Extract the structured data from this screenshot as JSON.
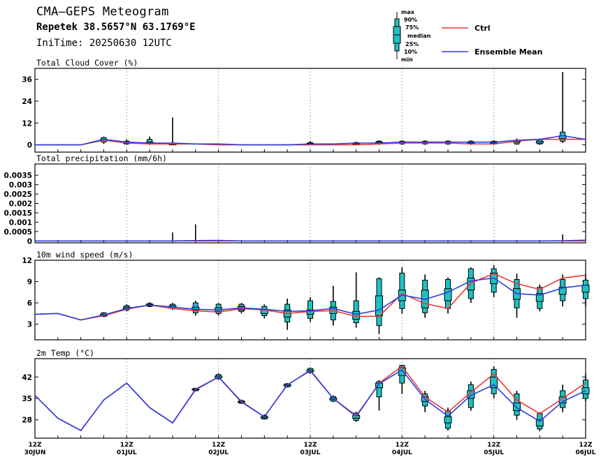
{
  "header": {
    "title": "CMA—GEPS Meteogram",
    "location": "Repetek 38.5657°N 63.1769°E",
    "init": "IniTime: 20250630 12UTC"
  },
  "legend": {
    "box_labels": [
      "max",
      "90%",
      "75%",
      "median",
      "25%",
      "10%",
      "min"
    ],
    "ctrl_label": "Ctrl",
    "mean_label": "Ensemble Mean",
    "ctrl_color": "#e8393a",
    "mean_color": "#2b3fe0",
    "box_color": "#20c0c0"
  },
  "chart_data": {
    "type": "line",
    "x_ticks": [
      {
        "hour": 0,
        "top": "12Z",
        "bottom": "30JUN"
      },
      {
        "hour": 24,
        "top": "12Z",
        "bottom": "01JUL"
      },
      {
        "hour": 48,
        "top": "12Z",
        "bottom": "02JUL"
      },
      {
        "hour": 72,
        "top": "12Z",
        "bottom": "03JUL"
      },
      {
        "hour": 96,
        "top": "12Z",
        "bottom": "04JUL"
      },
      {
        "hour": 120,
        "top": "12Z",
        "bottom": "05JUL"
      },
      {
        "hour": 144,
        "top": "12Z",
        "bottom": "06JUL"
      }
    ],
    "xlim": [
      0,
      144
    ],
    "panels": [
      {
        "key": "cloud",
        "title": "Total Cloud Cover (%)",
        "ylim": [
          -4,
          42
        ],
        "yticks": [
          "36",
          "24",
          "12",
          "0"
        ],
        "ytick_values": [
          36,
          24,
          12,
          0
        ],
        "x": [
          0,
          6,
          12,
          18,
          24,
          30,
          36,
          42,
          48,
          54,
          60,
          66,
          72,
          78,
          84,
          90,
          96,
          102,
          108,
          114,
          120,
          126,
          132,
          138,
          144
        ],
        "ctrl": [
          0,
          0,
          0,
          2.5,
          1,
          0.5,
          0.5,
          0.5,
          0,
          0,
          0,
          0,
          0,
          0,
          0,
          0.5,
          1,
          1,
          1,
          0.5,
          0.5,
          2,
          3,
          3,
          3
        ],
        "mean": [
          0,
          0,
          0,
          3,
          1.5,
          1,
          1,
          0.5,
          0.5,
          0,
          0,
          0,
          0.5,
          0.5,
          1,
          1,
          1.5,
          1.5,
          1.5,
          1.5,
          1.5,
          2.5,
          3,
          5,
          3
        ],
        "boxes": [
          [
            18,
            0.5,
            1.5,
            2.5,
            3,
            4,
            4.5
          ],
          [
            24,
            0,
            0.5,
            1,
            1.2,
            2,
            3
          ],
          [
            30,
            0,
            0.5,
            1,
            1.5,
            3,
            4.5
          ],
          [
            36,
            0,
            0,
            0,
            0.5,
            1,
            15
          ],
          [
            72,
            0,
            0,
            0.5,
            0.8,
            1.2,
            2
          ],
          [
            84,
            0,
            0.2,
            0.5,
            0.8,
            1.2,
            1.8
          ],
          [
            90,
            0,
            0.5,
            0.8,
            1.5,
            2,
            2.5
          ],
          [
            96,
            0,
            0.5,
            1,
            1.5,
            2,
            2.5
          ],
          [
            102,
            0,
            0.5,
            1,
            1.5,
            2,
            2.5
          ],
          [
            108,
            0,
            0.5,
            1,
            1.5,
            2,
            2.5
          ],
          [
            114,
            0,
            0.5,
            1,
            1.5,
            2,
            2.5
          ],
          [
            120,
            0,
            0.5,
            1,
            1.5,
            2,
            2.5
          ],
          [
            126,
            0,
            0.5,
            1.5,
            2,
            2.5,
            3.5
          ],
          [
            132,
            0,
            0.5,
            1,
            2,
            3,
            3.5
          ],
          [
            138,
            1,
            2,
            3.5,
            5,
            7,
            40
          ]
        ]
      },
      {
        "key": "precip",
        "title": "Total precipitation (mm/6h)",
        "ylim": [
          -0.0001,
          0.0041
        ],
        "yticks": [
          "0.0035",
          "0.003",
          "0.0025",
          "0.002",
          "0.0015",
          "0.001",
          "0.0005",
          "0"
        ],
        "ytick_values": [
          0.0035,
          0.003,
          0.0025,
          0.002,
          0.0015,
          0.001,
          0.0005,
          0
        ],
        "x": [
          0,
          6,
          12,
          18,
          24,
          30,
          36,
          42,
          48,
          54,
          60,
          66,
          72,
          78,
          84,
          90,
          96,
          102,
          108,
          114,
          120,
          126,
          132,
          138,
          144
        ],
        "ctrl": [
          0,
          0,
          0,
          0,
          0,
          0,
          0,
          0,
          0,
          0,
          0,
          0,
          0,
          0,
          0,
          0,
          0,
          0,
          0,
          0,
          0,
          0,
          0,
          0,
          0
        ],
        "mean": [
          0,
          0,
          0,
          0,
          0,
          0,
          0,
          2e-05,
          3e-05,
          0,
          0,
          0,
          0,
          0,
          0,
          0,
          0,
          0,
          0,
          0,
          0,
          0,
          0,
          1e-05,
          4e-05
        ],
        "spikes": [
          [
            36,
            0.00045
          ],
          [
            42,
            0.00088
          ],
          [
            138,
            0.00035
          ]
        ]
      },
      {
        "key": "wind",
        "title": "10m wind speed (m/s)",
        "ylim": [
          0.8,
          12
        ],
        "yticks": [
          "12",
          "9",
          "6",
          "3"
        ],
        "ytick_values": [
          12,
          9,
          6,
          3
        ],
        "x": [
          0,
          6,
          12,
          18,
          24,
          30,
          36,
          42,
          48,
          54,
          60,
          66,
          72,
          78,
          84,
          90,
          96,
          102,
          108,
          114,
          120,
          126,
          132,
          138,
          144
        ],
        "ctrl": [
          4.4,
          4.5,
          3.6,
          4.2,
          5.1,
          5.7,
          5.2,
          4.9,
          4.7,
          5.2,
          5,
          4.5,
          4.8,
          4.9,
          4.1,
          4.1,
          7.3,
          5.9,
          5.2,
          8.8,
          10.1,
          8.7,
          7.9,
          9.5,
          9.9
        ],
        "mean": [
          4.4,
          4.5,
          3.6,
          4.3,
          5.2,
          5.7,
          5.4,
          5.1,
          5,
          5.3,
          5.1,
          4.8,
          4.9,
          5.2,
          4.4,
          5,
          7.1,
          6.5,
          7.5,
          9.1,
          9.5,
          7.3,
          7.1,
          8.1,
          8.5
        ],
        "boxes": [
          [
            18,
            4,
            4.1,
            4.2,
            4.4,
            4.6,
            4.7
          ],
          [
            24,
            4.8,
            5,
            5.2,
            5.4,
            5.6,
            5.8
          ],
          [
            30,
            5.4,
            5.5,
            5.6,
            5.8,
            5.9,
            6.1
          ],
          [
            36,
            5,
            5.2,
            5.4,
            5.6,
            5.8,
            6
          ],
          [
            42,
            4.2,
            4.6,
            5,
            5.4,
            6,
            6.3
          ],
          [
            48,
            4.2,
            4.5,
            4.8,
            5.3,
            5.8,
            6
          ],
          [
            54,
            4.5,
            4.8,
            5,
            5.5,
            5.8,
            6
          ],
          [
            60,
            3.8,
            4.2,
            4.5,
            5,
            5.5,
            5.8
          ],
          [
            66,
            2.2,
            3.3,
            4,
            5,
            5.8,
            6.6
          ],
          [
            72,
            3.3,
            3.8,
            4.4,
            5,
            6.3,
            6.8
          ],
          [
            78,
            2.8,
            3.6,
            4.5,
            5.4,
            6.2,
            8.4
          ],
          [
            84,
            2.5,
            3.2,
            3.7,
            4.8,
            6.3,
            10.3
          ],
          [
            90,
            1.6,
            2.8,
            4.2,
            7,
            9.4,
            9.6
          ],
          [
            96,
            4.5,
            5.2,
            6.3,
            7.8,
            10.2,
            11
          ],
          [
            102,
            3.9,
            4.6,
            5.3,
            7.8,
            9.2,
            10
          ],
          [
            108,
            4.5,
            5.2,
            6.3,
            8,
            9.3,
            9.6
          ],
          [
            114,
            6,
            6.6,
            7.8,
            9.5,
            10.8,
            11
          ],
          [
            120,
            6.8,
            7.5,
            8.7,
            10.2,
            10.8,
            11.3
          ],
          [
            126,
            3.9,
            5.3,
            6.5,
            8,
            9.3,
            10.1
          ],
          [
            132,
            4.8,
            5.2,
            6.2,
            7.3,
            8.2,
            8.6
          ],
          [
            138,
            5.5,
            6.3,
            7.2,
            8.2,
            9.3,
            10
          ],
          [
            144,
            5.5,
            6.6,
            7.5,
            8.5,
            9.2,
            10.1
          ]
        ]
      },
      {
        "key": "temp",
        "title": "2m Temp (°C)",
        "ylim": [
          22,
          48
        ],
        "yticks": [
          "42",
          "35",
          "28"
        ],
        "ytick_values": [
          42,
          35,
          28
        ],
        "x": [
          0,
          6,
          12,
          18,
          24,
          30,
          36,
          42,
          48,
          54,
          60,
          66,
          72,
          78,
          84,
          90,
          96,
          102,
          108,
          114,
          120,
          126,
          132,
          138,
          144
        ],
        "ctrl": [
          36,
          28.5,
          24.5,
          34.5,
          40,
          32,
          27,
          38,
          42,
          34,
          29,
          39.5,
          44,
          35,
          29,
          40,
          45.5,
          35.5,
          30.5,
          37,
          43,
          34.5,
          30,
          35,
          40
        ],
        "mean": [
          36,
          28.5,
          24.5,
          34.5,
          40,
          32,
          27,
          37.8,
          42,
          33.8,
          29,
          39.4,
          44.2,
          35,
          29.3,
          39.8,
          44.3,
          34.7,
          29.2,
          36,
          39.5,
          32,
          27.5,
          34,
          37.5
        ],
        "boxes": [
          [
            42,
            37.3,
            37.5,
            37.8,
            38,
            38.3,
            38.5
          ],
          [
            48,
            41.1,
            41.4,
            41.8,
            42.3,
            42.8,
            43.2
          ],
          [
            54,
            33.2,
            33.4,
            33.7,
            34,
            34.3,
            34.6
          ],
          [
            60,
            28.1,
            28.3,
            28.6,
            29,
            29.4,
            29.8
          ],
          [
            66,
            38.6,
            38.8,
            39.1,
            39.5,
            39.8,
            40
          ],
          [
            72,
            43.1,
            43.4,
            43.8,
            44.3,
            44.8,
            45.1
          ],
          [
            78,
            33.8,
            34.1,
            34.6,
            35.1,
            35.6,
            36
          ],
          [
            84,
            27.3,
            27.8,
            28.5,
            29.4,
            30.2,
            30.6
          ],
          [
            90,
            31,
            35.5,
            38.5,
            40,
            40.5,
            41
          ],
          [
            96,
            36.5,
            40,
            42.5,
            45,
            45.8,
            46
          ],
          [
            102,
            30.5,
            32.5,
            34,
            35.5,
            36.5,
            37.5
          ],
          [
            108,
            24.5,
            25.2,
            27,
            29,
            31,
            32
          ],
          [
            114,
            31,
            32,
            35,
            37.5,
            39.5,
            40.5
          ],
          [
            120,
            35,
            36.5,
            38.5,
            42,
            44.5,
            45.5
          ],
          [
            126,
            28,
            29.5,
            31,
            33.5,
            36.5,
            37.5
          ],
          [
            132,
            24.3,
            25,
            26,
            28,
            30,
            30.5
          ],
          [
            138,
            30.5,
            32,
            33.5,
            35.5,
            37.5,
            39.5
          ],
          [
            144,
            34,
            35,
            36.5,
            38.5,
            41,
            43
          ]
        ]
      }
    ]
  }
}
